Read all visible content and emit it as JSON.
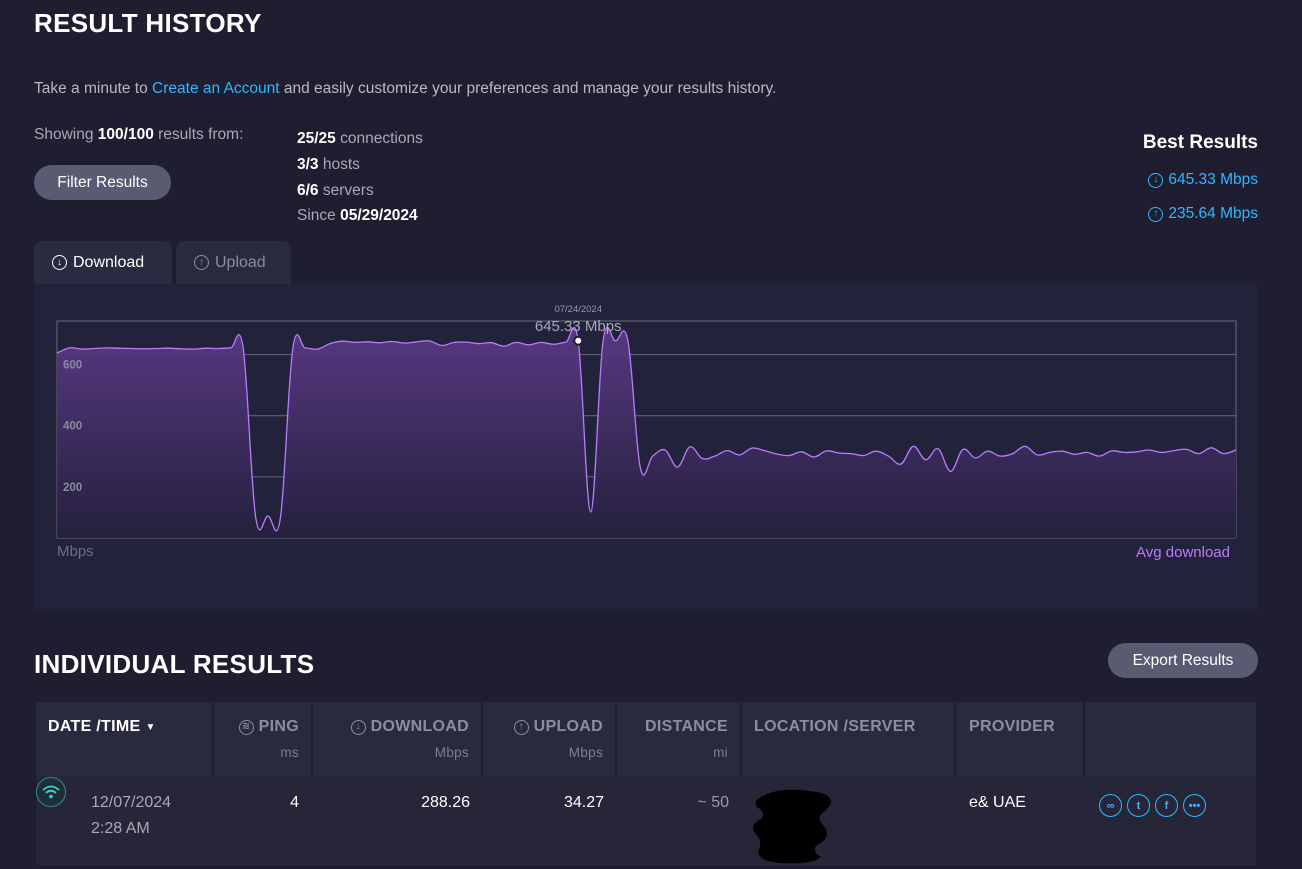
{
  "header": {
    "title": "RESULT HISTORY",
    "intro_before": "Take a minute to ",
    "intro_link": "Create an Account",
    "intro_after": " and easily customize your preferences and manage your results history."
  },
  "summary": {
    "showing_label": "Showing",
    "showing_count": "100/100",
    "showing_suffix": "results from:",
    "filter_button": "Filter Results",
    "connections_count": "25/25",
    "connections_label": "connections",
    "hosts_count": "3/3",
    "hosts_label": "hosts",
    "servers_count": "6/6",
    "servers_label": "servers",
    "since_label": "Since",
    "since_date": "05/29/2024"
  },
  "best_results": {
    "title": "Best Results",
    "download": "645.33 Mbps",
    "upload": "235.64 Mbps"
  },
  "tabs": [
    {
      "label": "Download",
      "icon": "arrow-down-circle-icon",
      "active": true
    },
    {
      "label": "Upload",
      "icon": "arrow-up-circle-icon",
      "active": false
    }
  ],
  "chart_data": {
    "type": "area",
    "ylabel": "Mbps",
    "ylim": [
      0,
      710
    ],
    "y_ticks": [
      200,
      400,
      600
    ],
    "legend": "Avg download",
    "color": "#b87cff",
    "tooltip": {
      "date": "07/24/2024",
      "value_label": "645.33 Mbps",
      "index": 42,
      "value": 645.33
    },
    "values": [
      605,
      622,
      618,
      620,
      622,
      621,
      620,
      619,
      620,
      621,
      619,
      618,
      621,
      620,
      622,
      621,
      70,
      72,
      66,
      620,
      622,
      618,
      636,
      644,
      640,
      642,
      639,
      643,
      638,
      642,
      645,
      630,
      640,
      641,
      636,
      639,
      628,
      640,
      632,
      640,
      634,
      641,
      645.33,
      85,
      645,
      645,
      645,
      230,
      268,
      288,
      232,
      298,
      260,
      268,
      286,
      272,
      294,
      286,
      275,
      270,
      282,
      265,
      285,
      278,
      276,
      270,
      284,
      268,
      242,
      300,
      256,
      292,
      218,
      290,
      262,
      284,
      268,
      276,
      300,
      272,
      280,
      284,
      274,
      280,
      268,
      285,
      280,
      282,
      288,
      280,
      286,
      290,
      276,
      295,
      276,
      288
    ]
  },
  "individual": {
    "title": "INDIVIDUAL RESULTS",
    "export_button": "Export Results",
    "columns": [
      {
        "label": "DATE /TIME",
        "unit": "",
        "icon": "",
        "sort": "▼"
      },
      {
        "label": "PING",
        "unit": "ms",
        "icon": "ping-icon"
      },
      {
        "label": "DOWNLOAD",
        "unit": "Mbps",
        "icon": "arrow-down-circle-icon"
      },
      {
        "label": "UPLOAD",
        "unit": "Mbps",
        "icon": "arrow-up-circle-icon"
      },
      {
        "label": "DISTANCE",
        "unit": "mi",
        "icon": ""
      },
      {
        "label": "LOCATION /SERVER",
        "unit": "",
        "icon": ""
      },
      {
        "label": "PROVIDER",
        "unit": "",
        "icon": ""
      }
    ],
    "rows": [
      {
        "date": "12/07/2024",
        "time": "2:28 AM",
        "ping": "4",
        "download": "288.26",
        "upload": "34.27",
        "distance": "~ 50",
        "location": "",
        "provider": "e& UAE",
        "actions": [
          "link-icon",
          "twitter-icon",
          "facebook-icon",
          "more-icon"
        ]
      }
    ]
  },
  "colors": {
    "background": "#1e1e30",
    "accent": "#2fb8ff",
    "chart_line": "#b87cff"
  }
}
